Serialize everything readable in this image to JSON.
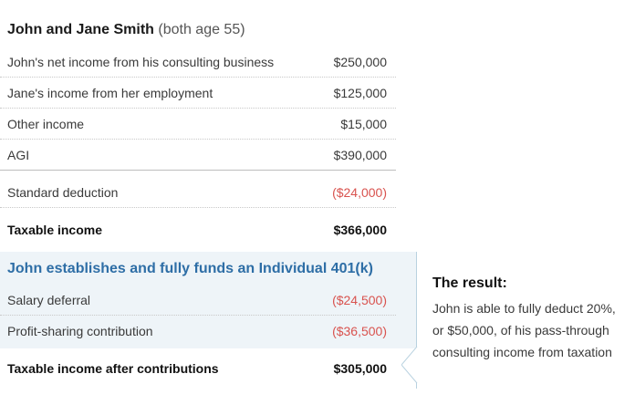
{
  "header": {
    "title": "John and Jane Smith",
    "subtitle": "(both age 55)"
  },
  "income_rows": [
    {
      "label": "John's net income from his consulting business",
      "value": "$250,000"
    },
    {
      "label": "Jane's income from her employment",
      "value": "$125,000"
    },
    {
      "label": "Other income",
      "value": "$15,000"
    },
    {
      "label": "AGI",
      "value": "$390,000"
    }
  ],
  "deduction": {
    "label": "Standard deduction",
    "value": "($24,000)"
  },
  "taxable": {
    "label": "Taxable income",
    "value": "$366,000"
  },
  "plan": {
    "heading": "John establishes and fully funds an Individual 401(k)",
    "rows": [
      {
        "label": "Salary deferral",
        "value": "($24,500)"
      },
      {
        "label": "Profit-sharing contribution",
        "value": "($36,500)"
      }
    ]
  },
  "after": {
    "label": "Taxable income after contributions",
    "value": "$305,000"
  },
  "result": {
    "title": "The result:",
    "line1": "John is able to fully deduct 20%,",
    "line2": "or $50,000, of his pass-through",
    "line3": "consulting income from taxation"
  },
  "colors": {
    "heading_blue": "#2e6ea6",
    "negative_red": "#d9534f",
    "panel_bg": "#eef4f8"
  }
}
